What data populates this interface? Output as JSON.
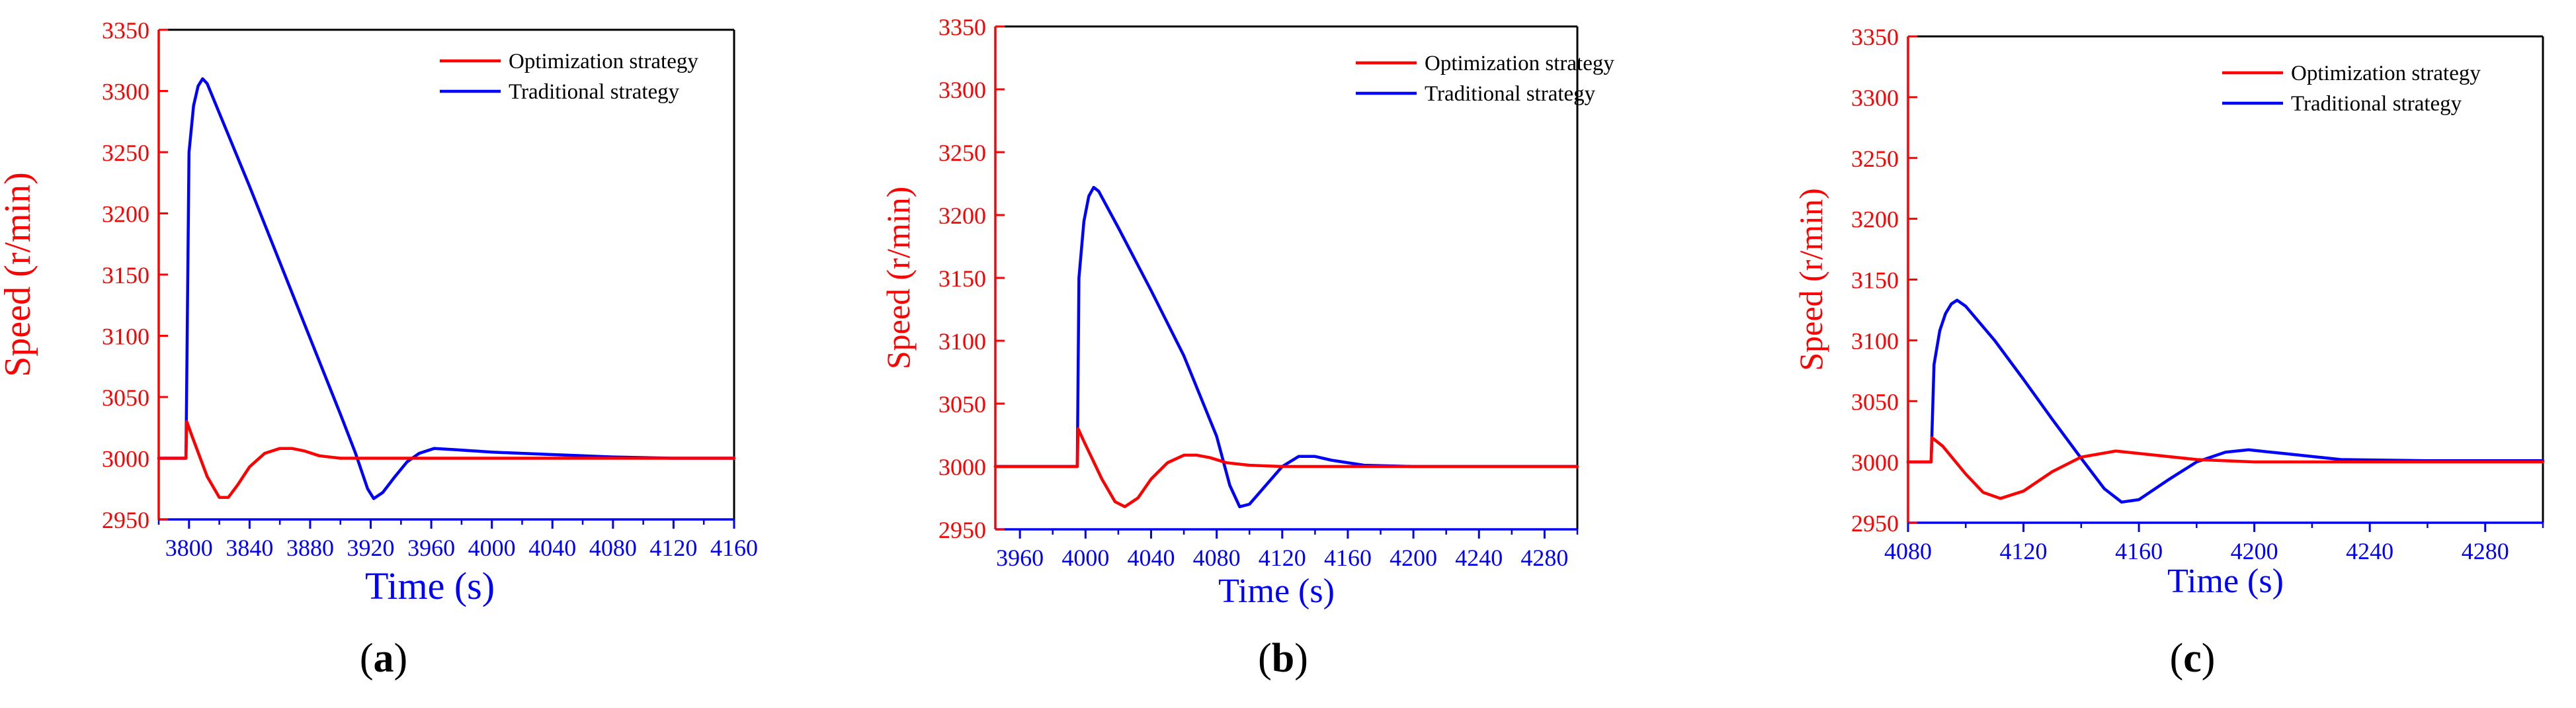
{
  "colors": {
    "optimization": "#ff0000",
    "traditional": "#0000ff",
    "axis": "#000000"
  },
  "chart_data": [
    {
      "type": "line",
      "panel_label": "a",
      "xlabel": "Time (s)",
      "ylabel": "Speed (r/min)",
      "xlim": [
        3780,
        4160
      ],
      "ylim": [
        2950,
        3350
      ],
      "xticks": [
        "3800",
        "3840",
        "3880",
        "3920",
        "3960",
        "4000",
        "4040",
        "4080",
        "4120",
        "4160"
      ],
      "yticks": [
        "2950",
        "3000",
        "3050",
        "3100",
        "3150",
        "3200",
        "3250",
        "3300",
        "3350"
      ],
      "legend_position": "top-right",
      "series": [
        {
          "name": "Optimization strategy",
          "color": "#ff0000",
          "x": [
            3780,
            3798,
            3798.5,
            3802,
            3812,
            3820,
            3826,
            3832,
            3840,
            3850,
            3860,
            3868,
            3876,
            3886,
            3900,
            3920,
            3960,
            4000,
            4160
          ],
          "y": [
            3000,
            3000,
            3030,
            3018,
            2985,
            2968,
            2968,
            2978,
            2993,
            3004,
            3008,
            3008,
            3006,
            3002,
            3000,
            3000,
            3000,
            3000,
            3000
          ]
        },
        {
          "name": "Traditional strategy",
          "color": "#0000ff",
          "x": [
            3780,
            3798,
            3800,
            3803,
            3806,
            3809,
            3812,
            3820,
            3840,
            3860,
            3880,
            3900,
            3910,
            3918,
            3922,
            3928,
            3936,
            3944,
            3952,
            3962,
            3975,
            4000,
            4040,
            4080,
            4120,
            4160
          ],
          "y": [
            3000,
            3000,
            3250,
            3288,
            3304,
            3310,
            3306,
            3282,
            3222,
            3160,
            3098,
            3036,
            3004,
            2975,
            2967,
            2972,
            2985,
            2997,
            3004,
            3008,
            3007,
            3005,
            3003,
            3001,
            3000,
            3000
          ]
        }
      ]
    },
    {
      "type": "line",
      "panel_label": "b",
      "xlabel": "Time (s)",
      "ylabel": "Speed (r/min)",
      "xlim": [
        3945,
        4300
      ],
      "ylim": [
        2950,
        3350
      ],
      "xticks": [
        "3960",
        "4000",
        "4040",
        "4080",
        "4120",
        "4160",
        "4200",
        "4240",
        "4280"
      ],
      "yticks": [
        "2950",
        "3000",
        "3050",
        "3100",
        "3150",
        "3200",
        "3250",
        "3300",
        "3350"
      ],
      "legend_position": "top-right",
      "series": [
        {
          "name": "Optimization strategy",
          "color": "#ff0000",
          "x": [
            3945,
            3995,
            3995.5,
            3999,
            4010,
            4018,
            4024,
            4032,
            4040,
            4050,
            4060,
            4068,
            4076,
            4086,
            4100,
            4120,
            4160,
            4200,
            4300
          ],
          "y": [
            3000,
            3000,
            3030,
            3020,
            2990,
            2972,
            2968,
            2975,
            2990,
            3003,
            3009,
            3009,
            3007,
            3003,
            3001,
            3000,
            3000,
            3000,
            3000
          ]
        },
        {
          "name": "Traditional strategy",
          "color": "#0000ff",
          "x": [
            3945,
            3995,
            3996,
            3999,
            4002,
            4005,
            4008,
            4020,
            4040,
            4060,
            4080,
            4088,
            4094,
            4100,
            4110,
            4120,
            4130,
            4140,
            4150,
            4170,
            4200,
            4250,
            4300
          ],
          "y": [
            3000,
            3000,
            3150,
            3195,
            3215,
            3222,
            3219,
            3190,
            3140,
            3088,
            3024,
            2985,
            2968,
            2970,
            2985,
            3000,
            3008,
            3008,
            3005,
            3001,
            3000,
            3000,
            3000
          ]
        }
      ]
    },
    {
      "type": "line",
      "panel_label": "c",
      "xlabel": "Time (s)",
      "ylabel": "Speed (r/min)",
      "xlim": [
        4080,
        4300
      ],
      "ylim": [
        2950,
        3350
      ],
      "xticks": [
        "4080",
        "4120",
        "4160",
        "4200",
        "4240",
        "4280"
      ],
      "yticks": [
        "2950",
        "3000",
        "3050",
        "3100",
        "3150",
        "3200",
        "3250",
        "3300",
        "3350"
      ],
      "legend_position": "top-right",
      "series": [
        {
          "name": "Optimization strategy",
          "color": "#ff0000",
          "x": [
            4080,
            4088,
            4088.3,
            4092,
            4100,
            4106,
            4112,
            4120,
            4130,
            4140,
            4152,
            4164,
            4180,
            4200,
            4300
          ],
          "y": [
            3000,
            3000,
            3020,
            3013,
            2990,
            2975,
            2970,
            2976,
            2992,
            3004,
            3009,
            3006,
            3002,
            3000,
            3000
          ]
        },
        {
          "name": "Traditional strategy",
          "color": "#0000ff",
          "x": [
            4080,
            4088,
            4089,
            4091,
            4093,
            4095,
            4097,
            4100,
            4110,
            4120,
            4130,
            4140,
            4148,
            4154,
            4160,
            4170,
            4180,
            4190,
            4198,
            4210,
            4230,
            4260,
            4300
          ],
          "y": [
            3000,
            3000,
            3080,
            3108,
            3122,
            3130,
            3133,
            3128,
            3100,
            3068,
            3035,
            3003,
            2978,
            2967,
            2969,
            2985,
            3000,
            3008,
            3010,
            3007,
            3002,
            3001,
            3001
          ]
        }
      ]
    }
  ]
}
